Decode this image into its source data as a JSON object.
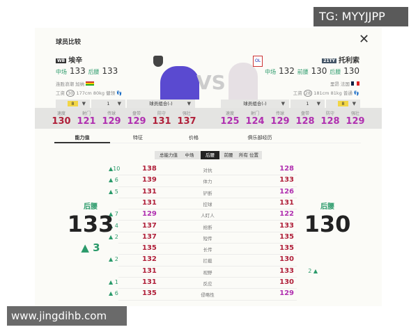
{
  "watermarks": {
    "top": "TG: MYYJJPP",
    "bottom": "www.jingdihb.com"
  },
  "title": "球员比较",
  "colors": {
    "high": "#b0203a",
    "low": "#b030b0",
    "up": "#2a9a6a"
  },
  "left": {
    "badge": "WB",
    "name": "埃辛",
    "positions": [
      {
        "label": "中场",
        "value": "133"
      },
      {
        "label": "后腰",
        "value": "133"
      }
    ],
    "meta1": "连胜浪潮  加纳",
    "wage_label": "工资",
    "wage": "30",
    "height": "177cm",
    "weight": "80kg",
    "foot": "健领",
    "level": "8",
    "skill": "1",
    "combo": "球员组合(-)",
    "stats": [
      {
        "label": "速度",
        "value": 130
      },
      {
        "label": "射门",
        "value": 121
      },
      {
        "label": "传球",
        "value": 129
      },
      {
        "label": "盘带",
        "value": 129
      },
      {
        "label": "防守",
        "value": 131
      },
      {
        "label": "强壮",
        "value": 137
      }
    ],
    "big": {
      "pos": "后腰",
      "value": "133",
      "diff": "▲ 3"
    }
  },
  "right": {
    "badge": "21TY",
    "name": "托利索",
    "positions": [
      {
        "label": "中场",
        "value": "132"
      },
      {
        "label": "前腰",
        "value": "130"
      },
      {
        "label": "后腰",
        "value": "130"
      }
    ],
    "meta1": "里昂  法国",
    "wage_label": "工资",
    "wage": "28",
    "height": "181cm",
    "weight": "81kg",
    "foot": "普通",
    "level": "8",
    "skill": "1",
    "combo": "球员组合(-)",
    "stats": [
      {
        "label": "速度",
        "value": 125
      },
      {
        "label": "射门",
        "value": 124
      },
      {
        "label": "传球",
        "value": 129
      },
      {
        "label": "盘带",
        "value": 128
      },
      {
        "label": "防守",
        "value": 128
      },
      {
        "label": "强壮",
        "value": 129
      }
    ],
    "big": {
      "pos": "后腰",
      "value": "130"
    }
  },
  "vs": "VS",
  "tabs": [
    "能力值",
    "特征",
    "价格",
    "俱乐部经历"
  ],
  "subtabs": [
    "总能力值",
    "中场",
    "后腰",
    "前腰",
    "所有 位置"
  ],
  "rows": [
    {
      "d": "▲10",
      "l": 138,
      "label": "对抗",
      "r": 128
    },
    {
      "d": "▲ 6",
      "l": 139,
      "label": "体力",
      "r": 133
    },
    {
      "d": "▲ 5",
      "l": 131,
      "label": "铲断",
      "r": 126
    },
    {
      "d": "",
      "l": 131,
      "label": "控球",
      "r": 131
    },
    {
      "d": "▲ 7",
      "l": 129,
      "label": "人盯人",
      "r": 122
    },
    {
      "d": "▲ 4",
      "l": 137,
      "label": "抢断",
      "r": 133
    },
    {
      "d": "▲ 2",
      "l": 137,
      "label": "短传",
      "r": 135
    },
    {
      "d": "",
      "l": 135,
      "label": "长传",
      "r": 135
    },
    {
      "d": "▲ 2",
      "l": 132,
      "label": "拦截",
      "r": 130
    },
    {
      "d": "",
      "l": 131,
      "label": "视野",
      "r": 133,
      "rd": "2 ▲"
    },
    {
      "d": "▲ 1",
      "l": 131,
      "label": "反应",
      "r": 130
    },
    {
      "d": "▲ 6",
      "l": 135,
      "label": "侵略性",
      "r": 129
    }
  ]
}
